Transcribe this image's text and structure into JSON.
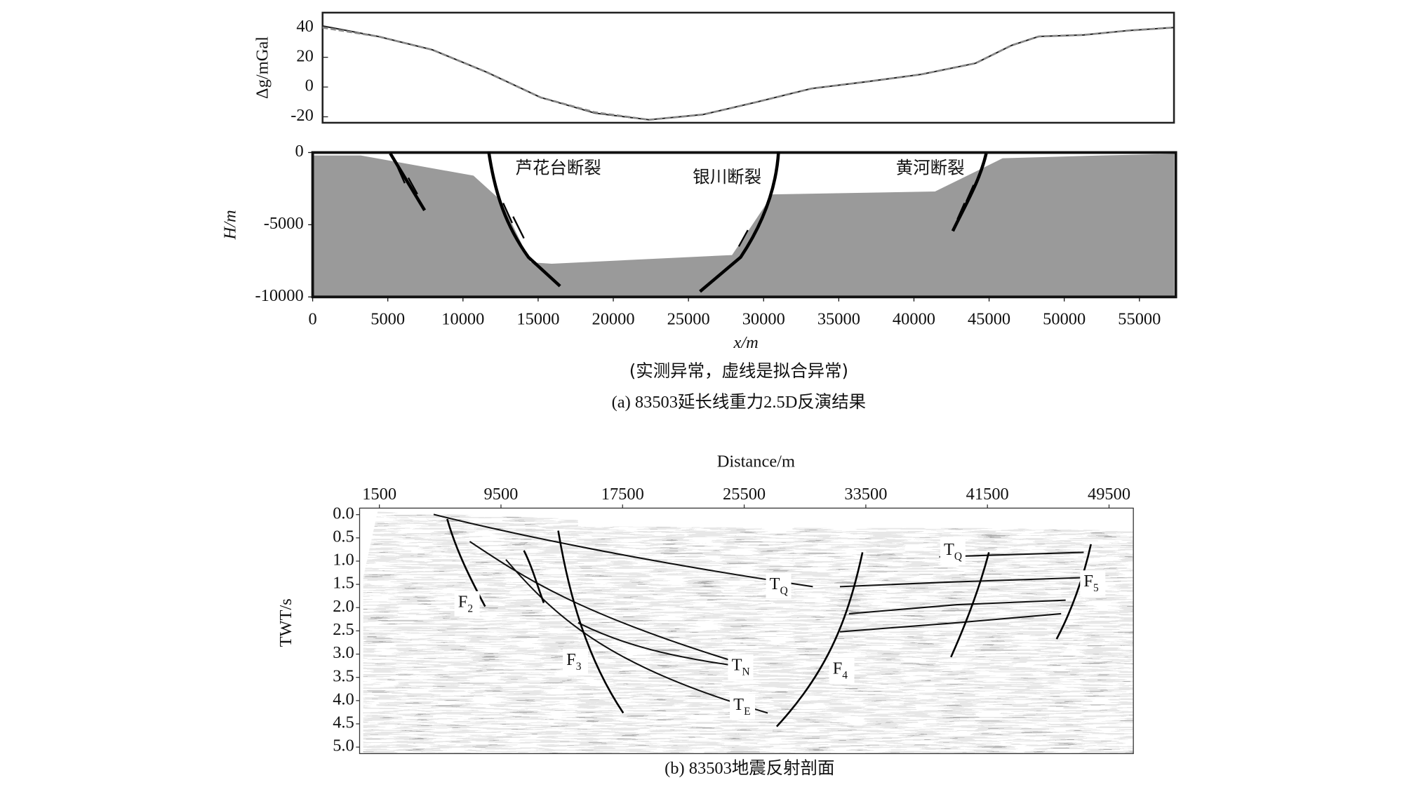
{
  "chart_data": [
    {
      "type": "line",
      "ylabel": "Δg/mGal",
      "x": [
        700,
        4400,
        8000,
        11600,
        15200,
        18800,
        22400,
        26000,
        29600,
        33200,
        36800,
        40500,
        44100,
        46500,
        48300,
        51300,
        54300,
        57300
      ],
      "series": [
        {
          "color": "#222222",
          "style": "solid",
          "values": [
            41,
            34,
            25,
            10,
            -7,
            -17.5,
            -22,
            -18.5,
            -10,
            -1,
            3.5,
            8.5,
            16,
            28,
            34,
            35,
            38,
            40
          ]
        },
        {
          "color": "#888888",
          "style": "dashed",
          "values": [
            40,
            34,
            25,
            10,
            -7,
            -17,
            -22,
            -18.5,
            -10,
            -1,
            3.5,
            8.5,
            16,
            28,
            34,
            35,
            38,
            40
          ]
        }
      ],
      "xlim": [
        700,
        57300
      ],
      "ylim": [
        -24,
        50
      ],
      "yticks": [
        -20,
        0,
        20,
        40
      ]
    },
    {
      "type": "area",
      "xlabel": "x/m",
      "ylabel": "H/m",
      "x": [
        0,
        3200,
        10700,
        12500,
        14500,
        15900,
        27900,
        30600,
        41400,
        45900,
        52500,
        57300
      ],
      "values": [
        -200,
        -200,
        -1600,
        -3300,
        -7600,
        -7700,
        -7100,
        -2900,
        -2700,
        -400,
        -200,
        -100
      ],
      "color": "#9a9a9a",
      "xlim": [
        0,
        57300
      ],
      "ylim": [
        -10000,
        0
      ],
      "xticks": [
        0,
        5000,
        10000,
        15000,
        20000,
        25000,
        30000,
        35000,
        40000,
        45000,
        50000,
        55000
      ],
      "yticks": [
        0,
        -5000,
        -10000
      ],
      "annotations": [
        "芦花台断裂",
        "银川断裂",
        "黄河断裂"
      ],
      "note": "(实测异常，虚线是拟合异常)",
      "caption": "(a) 83503延长线重力2.5D反演结果"
    },
    {
      "type": "image",
      "xlabel": "Distance/m",
      "ylabel": "TWT/s",
      "xlim": [
        200,
        51100
      ],
      "ylim": [
        5.14,
        -0.14
      ],
      "xticks": [
        1500,
        9500,
        17500,
        25500,
        33500,
        41500,
        49500
      ],
      "yticks": [
        {
          "value": 0,
          "label": "0.0"
        },
        {
          "value": 0.5,
          "label": "0.5"
        },
        {
          "value": 1,
          "label": "1.0"
        },
        {
          "value": 1.5,
          "label": "1.5"
        },
        {
          "value": 2,
          "label": "2.0"
        },
        {
          "value": 2.5,
          "label": "2.5"
        },
        {
          "value": 3,
          "label": "3.0"
        },
        {
          "value": 3.5,
          "label": "3.5"
        },
        {
          "value": 4,
          "label": "4.0"
        },
        {
          "value": 4.5,
          "label": "4.5"
        },
        {
          "value": 5,
          "label": "5.0"
        }
      ],
      "annotations": [
        {
          "text": "F",
          "sub": "2"
        },
        {
          "text": "F",
          "sub": "3"
        },
        {
          "text": "F",
          "sub": "4"
        },
        {
          "text": "F",
          "sub": "5"
        },
        {
          "text": "T",
          "sub": "Q"
        },
        {
          "text": "T",
          "sub": "Q"
        },
        {
          "text": "T",
          "sub": "N"
        },
        {
          "text": "T",
          "sub": "E"
        }
      ],
      "caption": "(b) 83503地震反射剖面"
    }
  ]
}
